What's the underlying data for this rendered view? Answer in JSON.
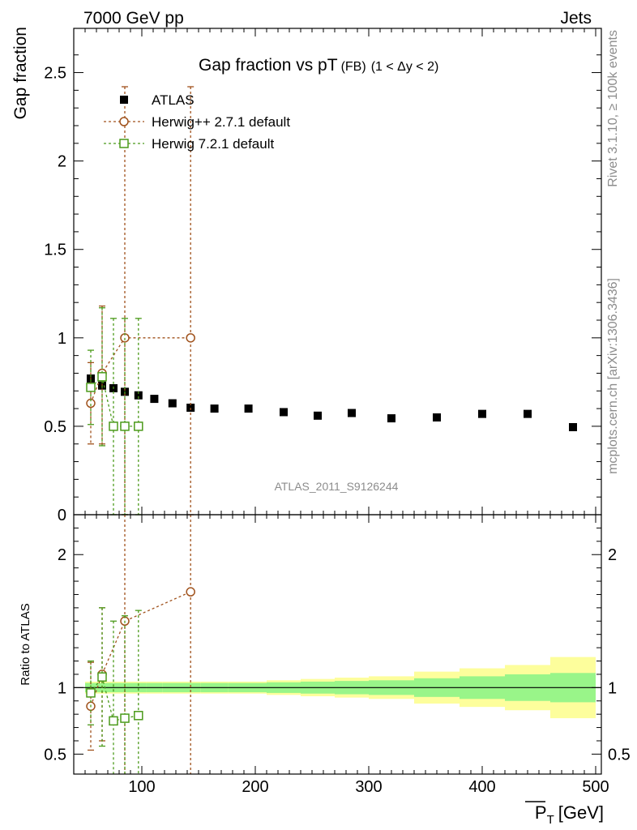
{
  "header": {
    "left": "7000 GeV pp",
    "right": "Jets"
  },
  "side": {
    "rivet": "Rivet 3.1.10, ≥ 100k events",
    "mcplots": "mcplots.cern.ch [arXiv:1306.3436]"
  },
  "chart_data": [
    {
      "type": "scatter",
      "panel": "main",
      "title": "Gap fraction vs pT",
      "title_sub": "(FB)",
      "title_range": "(1 < Δy < 2)",
      "ylabel": "Gap fraction",
      "watermark": "ATLAS_2011_S9126244",
      "xlim": [
        40,
        505
      ],
      "ylim": [
        0,
        2.75
      ],
      "y_ticks": [
        "0",
        "0.5",
        "1",
        "1.5",
        "2",
        "2.5"
      ],
      "legend_position": "top-left",
      "series": [
        {
          "name": "ATLAS",
          "marker": "filled-square",
          "color": "#000000",
          "x": [
            55,
            65,
            75,
            85,
            97,
            111,
            127,
            143,
            164,
            194,
            225,
            255,
            285,
            320,
            360,
            400,
            440,
            480
          ],
          "y": [
            0.77,
            0.73,
            0.715,
            0.695,
            0.675,
            0.655,
            0.63,
            0.605,
            0.6,
            0.6,
            0.58,
            0.56,
            0.575,
            0.545,
            0.55,
            0.57,
            0.57,
            0.495
          ]
        },
        {
          "name": "Herwig++ 2.7.1 default",
          "marker": "open-circle",
          "color": "#a0521c",
          "x": [
            55,
            65,
            85,
            143
          ],
          "y": [
            0.63,
            0.8,
            1.0,
            1.0
          ],
          "yerr_low": [
            0.23,
            0.4,
            1.0,
            1.0
          ],
          "yerr_high": [
            0.23,
            0.38,
            1.42,
            1.42
          ]
        },
        {
          "name": "Herwig 7.2.1 default",
          "marker": "open-square",
          "color": "#4b9a1a",
          "x": [
            55,
            65,
            75,
            85,
            97
          ],
          "y": [
            0.72,
            0.78,
            0.5,
            0.5,
            0.5
          ],
          "yerr_low": [
            0.21,
            0.39,
            0.5,
            0.5,
            0.5
          ],
          "yerr_high": [
            0.21,
            0.39,
            0.61,
            0.61,
            0.61
          ]
        }
      ]
    },
    {
      "type": "scatter",
      "panel": "ratio",
      "ylabel": "Ratio to ATLAS",
      "xlabel": "P",
      "xlabel_sub": "T",
      "xlabel_unit": "[GeV]",
      "xlim": [
        40,
        505
      ],
      "ylim": [
        0.35,
        2.3
      ],
      "x_ticks": [
        "100",
        "200",
        "300",
        "400",
        "500"
      ],
      "y_ticks": [
        "0.5",
        "1",
        "2"
      ],
      "bands": {
        "edges": [
          50,
          60,
          70,
          80,
          90,
          104,
          118,
          135,
          152,
          176,
          210,
          240,
          270,
          300,
          340,
          380,
          420,
          460,
          500
        ],
        "inner": [
          0.035,
          0.035,
          0.035,
          0.035,
          0.035,
          0.035,
          0.035,
          0.035,
          0.035,
          0.035,
          0.04,
          0.045,
          0.05,
          0.055,
          0.07,
          0.085,
          0.1,
          0.11
        ],
        "outer": [
          0.045,
          0.045,
          0.045,
          0.045,
          0.045,
          0.045,
          0.045,
          0.045,
          0.045,
          0.045,
          0.055,
          0.065,
          0.075,
          0.085,
          0.12,
          0.145,
          0.17,
          0.23
        ],
        "inner_color": "#99f589",
        "outer_color": "#fdfe9c"
      },
      "series": [
        {
          "name": "Herwig++ 2.7.1 default",
          "color": "#a0521c",
          "x": [
            55,
            65,
            85,
            143
          ],
          "y": [
            0.86,
            1.1,
            1.5,
            1.72
          ],
          "yerr_low": [
            0.33,
            0.5,
            1.5,
            1.72
          ],
          "yerr_high": [
            0.33,
            0.5,
            1.5,
            1.72
          ]
        },
        {
          "name": "Herwig 7.2.1 default",
          "color": "#4b9a1a",
          "x": [
            55,
            65,
            75,
            85,
            97
          ],
          "y": [
            0.96,
            1.08,
            0.75,
            0.77,
            0.79
          ],
          "yerr_low": [
            0.24,
            0.52,
            0.75,
            0.77,
            0.79
          ],
          "yerr_high": [
            0.24,
            0.52,
            0.75,
            0.77,
            0.79
          ]
        }
      ]
    }
  ]
}
